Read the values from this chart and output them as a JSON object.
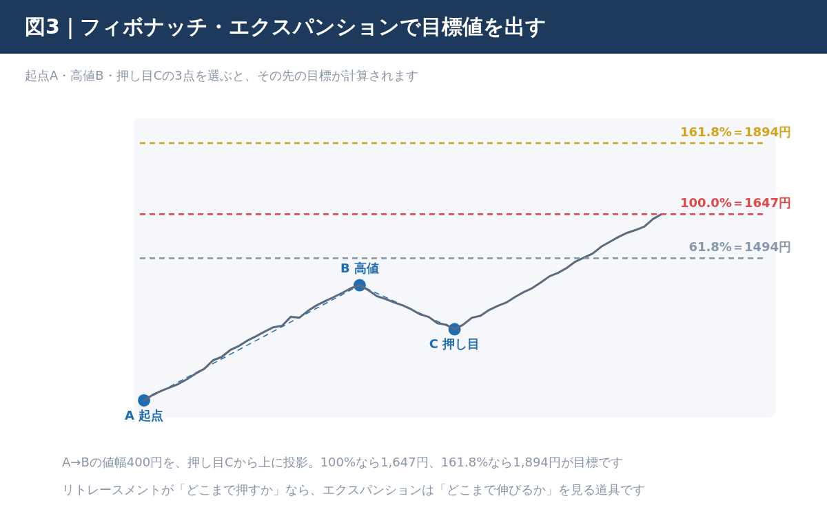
{
  "chart_data": {
    "type": "line",
    "title": "図3｜フィボナッチ・エクスパンションで目標値を出す",
    "subtitle": "起点A・高値B・押し目Cの3点を選ぶと、その先の目標が計算されます",
    "categories": [
      null,
      null,
      null,
      null,
      null,
      null,
      null,
      null,
      null,
      null,
      null,
      null,
      null,
      null,
      null,
      null,
      null,
      null,
      null,
      null,
      null,
      null,
      null,
      null,
      null,
      null,
      null,
      null,
      null,
      null,
      null,
      null,
      null,
      null,
      null,
      null,
      null,
      null,
      null,
      null,
      null,
      null,
      null,
      null,
      null,
      null,
      null,
      null,
      null,
      null,
      null,
      null,
      null,
      null,
      null,
      null,
      null,
      null,
      null,
      null,
      null
    ],
    "ylim": [
      940,
      1980
    ],
    "legend": false,
    "series": [
      {
        "color": "#5b6b7d",
        "marker": "none",
        "line_style": "solid",
        "values": [
          1000,
          1019,
          1033,
          1045,
          1057,
          1074,
          1093,
          1110,
          1139,
          1151,
          1175,
          1189,
          1208,
          1223,
          1239,
          1254,
          1259,
          1290,
          1287,
          1311,
          1330,
          1345,
          1359,
          1374,
          1390,
          1400,
          1383,
          1362,
          1352,
          1340,
          1330,
          1316,
          1299,
          1290,
          1268,
          1263,
          1247,
          1263,
          1287,
          1294,
          1314,
          1328,
          1340,
          1359,
          1376,
          1390,
          1410,
          1431,
          1443,
          1460,
          1482,
          1496,
          1510,
          1534,
          1551,
          1568,
          1582,
          1592,
          1604,
          1630,
          1647
        ]
      },
      {
        "color": "#1f6db3",
        "marker": "circle",
        "line_style": "dashed",
        "values": [
          1000,
          null,
          null,
          null,
          null,
          null,
          null,
          null,
          null,
          null,
          null,
          null,
          null,
          null,
          null,
          null,
          null,
          null,
          null,
          null,
          null,
          null,
          null,
          null,
          null,
          1400,
          null,
          null,
          null,
          null,
          null,
          null,
          null,
          null,
          null,
          null,
          1247,
          null,
          null,
          null,
          null,
          null,
          null,
          null,
          null,
          null,
          null,
          null,
          null,
          null,
          null,
          null,
          null,
          null,
          null,
          null,
          null,
          null,
          null,
          null,
          null
        ]
      }
    ],
    "ref_lines": [
      {
        "axis": "y",
        "value": 1894,
        "label": "161.8%＝1894円",
        "color": "#d4a21c",
        "line_style": "dashed"
      },
      {
        "axis": "y",
        "value": 1647,
        "label": "100.0%＝1647円",
        "color": "#e04848",
        "line_style": "dashed"
      },
      {
        "axis": "y",
        "value": 1494,
        "label": "61.8%＝1494円",
        "color": "#8796aa",
        "line_style": "dashed"
      }
    ],
    "annotations": [
      {
        "text": "A 起点",
        "y": 1000
      },
      {
        "text": "B 高値",
        "y": 1400
      },
      {
        "text": "C 押し目",
        "y": 1247
      },
      "A→Bの値幅400円を、押し目Cから上に投影。100%なら1,647円、161.8%なら1,894円が目標です",
      "リトレースメントが「どこまで押すか」なら、エクスパンションは「どこまで伸びるか」を見る道具です"
    ]
  }
}
